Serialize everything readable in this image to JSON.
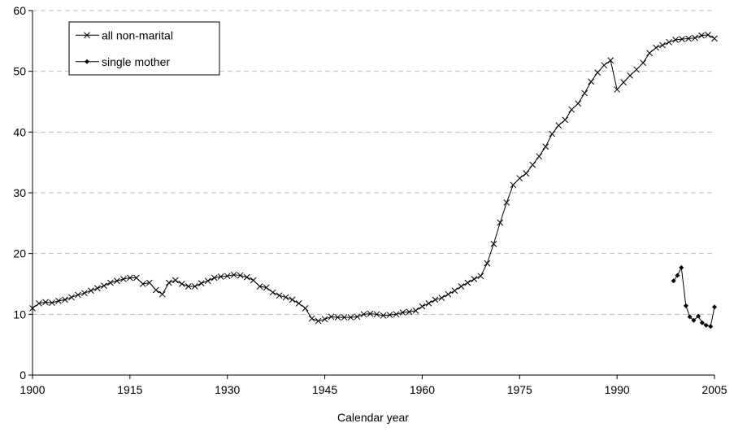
{
  "chart_data": {
    "type": "line",
    "xlabel": "Calendar year",
    "xlim": [
      1900,
      2005
    ],
    "xticks": [
      1900,
      1915,
      1930,
      1945,
      1960,
      1975,
      1990,
      2005
    ],
    "ylim": [
      0,
      60
    ],
    "yticks": [
      0,
      10,
      20,
      30,
      40,
      50,
      60
    ],
    "grid": true,
    "legend": "upper left",
    "series": [
      {
        "name": "all non-marital",
        "color": "#000000",
        "marker": "x",
        "x": [
          1900,
          1901,
          1902,
          1903,
          1904,
          1905,
          1906,
          1907,
          1908,
          1909,
          1910,
          1911,
          1912,
          1913,
          1914,
          1915,
          1916,
          1917,
          1918,
          1919,
          1920,
          1921,
          1922,
          1923,
          1924,
          1925,
          1926,
          1927,
          1928,
          1929,
          1930,
          1931,
          1932,
          1933,
          1934,
          1935,
          1936,
          1937,
          1938,
          1939,
          1940,
          1941,
          1942,
          1943,
          1944,
          1945,
          1946,
          1947,
          1948,
          1949,
          1950,
          1951,
          1952,
          1953,
          1954,
          1955,
          1956,
          1957,
          1958,
          1959,
          1960,
          1961,
          1962,
          1963,
          1964,
          1965,
          1966,
          1967,
          1968,
          1969,
          1970,
          1971,
          1972,
          1973,
          1974,
          1975,
          1976,
          1977,
          1978,
          1979,
          1980,
          1981,
          1982,
          1983,
          1984,
          1985,
          1986,
          1987,
          1988,
          1989,
          1990,
          1991,
          1992,
          1993,
          1994,
          1995,
          1996,
          1997,
          1998,
          1999,
          2000,
          2001,
          2002,
          2003,
          2004,
          2005
        ],
        "values": [
          11,
          11.8,
          12,
          11.9,
          12.2,
          12.4,
          12.8,
          13.2,
          13.5,
          13.9,
          14.3,
          14.7,
          15.2,
          15.5,
          15.8,
          16,
          16,
          15,
          15.2,
          14,
          13.3,
          15.2,
          15.6,
          15,
          14.6,
          14.6,
          15.1,
          15.5,
          16,
          16.2,
          16.3,
          16.5,
          16.4,
          16.1,
          15.6,
          14.6,
          14.4,
          13.6,
          13.1,
          12.8,
          12.4,
          11.8,
          11,
          9.3,
          8.9,
          9.2,
          9.6,
          9.5,
          9.5,
          9.5,
          9.6,
          10,
          10.1,
          10,
          9.8,
          9.9,
          10,
          10.3,
          10.4,
          10.6,
          11.3,
          11.8,
          12.4,
          12.7,
          13.3,
          13.9,
          14.6,
          15.2,
          15.8,
          16.3,
          18.4,
          21.6,
          25.1,
          28.4,
          31.3,
          32.4,
          33.2,
          34.6,
          36,
          37.6,
          39.7,
          41.1,
          42,
          43.7,
          44.7,
          46.4,
          48.3,
          49.8,
          51,
          51.8,
          47,
          48.2,
          49.3,
          50.3,
          51.4,
          53,
          53.9,
          54.3,
          54.8,
          55.2,
          55.3,
          55.4,
          55.5,
          55.9,
          56,
          55.4
        ]
      },
      {
        "name": "single mother",
        "color": "#000000",
        "marker": "diamond",
        "x": [
          1998.7,
          1999.3,
          1999.9,
          2000.6,
          2001.2,
          2001.8,
          2002.5,
          2003.1,
          2003.7,
          2004.4,
          2005
        ],
        "values": [
          15.5,
          16.4,
          17.7,
          11.4,
          9.6,
          9,
          9.7,
          8.6,
          8.2,
          8,
          11.2
        ]
      }
    ]
  }
}
